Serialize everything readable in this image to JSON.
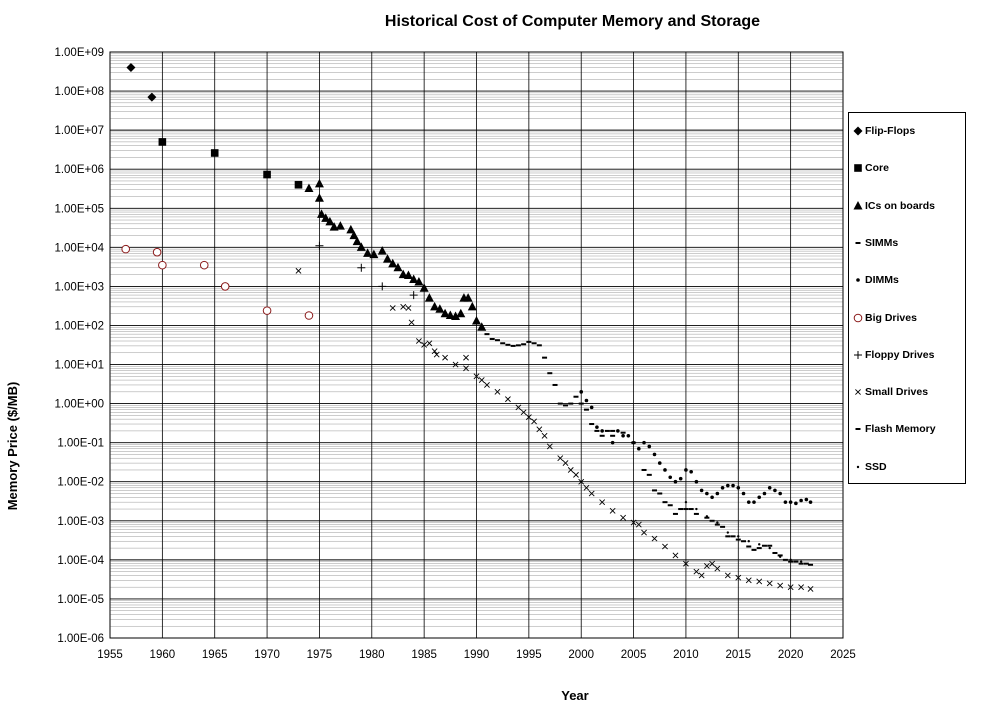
{
  "chart_data": {
    "type": "scatter",
    "title": "Historical Cost of Computer Memory and Storage",
    "xlabel": "Year",
    "ylabel": "Memory Price ($/MB)",
    "xlim": [
      1955,
      2025
    ],
    "ylim": [
      1e-06,
      1000000000.0
    ],
    "y_scale": "log",
    "grid": true,
    "legend_position": "right",
    "x_ticks": [
      "1955",
      "1960",
      "1965",
      "1970",
      "1975",
      "1980",
      "1985",
      "1990",
      "1995",
      "2000",
      "2005",
      "2010",
      "2015",
      "2020",
      "2025"
    ],
    "y_ticks": [
      "1.00E+09",
      "1.00E+08",
      "1.00E+07",
      "1.00E+06",
      "1.00E+05",
      "1.00E+04",
      "1.00E+03",
      "1.00E+02",
      "1.00E+01",
      "1.00E+00",
      "1.00E-01",
      "1.00E-02",
      "1.00E-03",
      "1.00E-04",
      "1.00E-05",
      "1.00E-06"
    ],
    "series": [
      {
        "name": "Flip-Flops",
        "marker": "diamond",
        "color": "#000000",
        "points": [
          [
            1957,
            400000000
          ],
          [
            1959,
            70000000
          ]
        ]
      },
      {
        "name": "Core",
        "marker": "square",
        "color": "#000000",
        "points": [
          [
            1960,
            5000000
          ],
          [
            1965,
            2600000
          ],
          [
            1970,
            730000
          ],
          [
            1973,
            400000
          ]
        ]
      },
      {
        "name": "ICs on boards",
        "marker": "triangle",
        "color": "#000000",
        "points": [
          [
            1974,
            320000
          ],
          [
            1975,
            420000
          ],
          [
            1975,
            180000
          ],
          [
            1975.2,
            70000
          ],
          [
            1975.6,
            55000
          ],
          [
            1976,
            45000
          ],
          [
            1976.4,
            33000
          ],
          [
            1977,
            35000
          ],
          [
            1978,
            28000
          ],
          [
            1978.3,
            20000
          ],
          [
            1978.6,
            14000
          ],
          [
            1979,
            10000
          ],
          [
            1979.6,
            7000
          ],
          [
            1980.2,
            6500
          ],
          [
            1981,
            8000
          ],
          [
            1981.5,
            5000
          ],
          [
            1982,
            3800
          ],
          [
            1982.5,
            3000
          ],
          [
            1983,
            2000
          ],
          [
            1983.5,
            1900
          ],
          [
            1984,
            1500
          ],
          [
            1984.5,
            1300
          ],
          [
            1985,
            900
          ],
          [
            1985.5,
            500
          ],
          [
            1986,
            300
          ],
          [
            1986.5,
            260
          ],
          [
            1987,
            200
          ],
          [
            1987.5,
            180
          ],
          [
            1988,
            170
          ],
          [
            1988.5,
            200
          ],
          [
            1988.8,
            500
          ],
          [
            1989.2,
            500
          ],
          [
            1989.6,
            300
          ],
          [
            1990,
            130
          ],
          [
            1990.5,
            90
          ]
        ]
      },
      {
        "name": "SIMMs",
        "marker": "dash",
        "color": "#000000",
        "points": [
          [
            1991,
            60
          ],
          [
            1991.5,
            45
          ],
          [
            1992,
            42
          ],
          [
            1992.5,
            35
          ],
          [
            1993,
            32
          ],
          [
            1993.5,
            30
          ],
          [
            1994,
            31
          ],
          [
            1994.5,
            33
          ],
          [
            1995,
            38
          ],
          [
            1995.5,
            35
          ],
          [
            1996,
            31
          ],
          [
            1996.5,
            15
          ],
          [
            1997,
            6
          ],
          [
            1997.5,
            3
          ],
          [
            1998,
            1
          ],
          [
            1998.5,
            0.9
          ],
          [
            1999,
            1
          ],
          [
            1999.5,
            1.5
          ],
          [
            2000,
            1
          ],
          [
            2000.5,
            0.7
          ],
          [
            2001,
            0.3
          ],
          [
            2001.5,
            0.2
          ],
          [
            2002,
            0.15
          ],
          [
            2002.5,
            0.2
          ],
          [
            2003,
            0.15
          ]
        ]
      },
      {
        "name": "DIMMs",
        "marker": "dot",
        "color": "#000000",
        "points": [
          [
            2000,
            2
          ],
          [
            2000.5,
            1.2
          ],
          [
            2001,
            0.8
          ],
          [
            2001.5,
            0.25
          ],
          [
            2002,
            0.2
          ],
          [
            2003,
            0.1
          ],
          [
            2003.5,
            0.2
          ],
          [
            2004,
            0.15
          ],
          [
            2004.5,
            0.15
          ],
          [
            2005,
            0.1
          ],
          [
            2005.5,
            0.07
          ],
          [
            2006,
            0.1
          ],
          [
            2006.5,
            0.08
          ],
          [
            2007,
            0.05
          ],
          [
            2007.5,
            0.03
          ],
          [
            2008,
            0.02
          ],
          [
            2008.5,
            0.013
          ],
          [
            2009,
            0.01
          ],
          [
            2009.5,
            0.012
          ],
          [
            2010,
            0.02
          ],
          [
            2010.5,
            0.018
          ],
          [
            2011,
            0.01
          ],
          [
            2011.5,
            0.006
          ],
          [
            2012,
            0.005
          ],
          [
            2012.5,
            0.004
          ],
          [
            2013,
            0.005
          ],
          [
            2013.5,
            0.007
          ],
          [
            2014,
            0.008
          ],
          [
            2014.5,
            0.008
          ],
          [
            2015,
            0.007
          ],
          [
            2015.5,
            0.005
          ],
          [
            2016,
            0.003
          ],
          [
            2016.5,
            0.003
          ],
          [
            2017,
            0.004
          ],
          [
            2017.5,
            0.005
          ],
          [
            2018,
            0.007
          ],
          [
            2018.5,
            0.006
          ],
          [
            2019,
            0.005
          ],
          [
            2019.5,
            0.003
          ],
          [
            2020,
            0.003
          ],
          [
            2020.5,
            0.0028
          ],
          [
            2021,
            0.0033
          ],
          [
            2021.5,
            0.0035
          ],
          [
            2021.9,
            0.003
          ]
        ]
      },
      {
        "name": "Big Drives",
        "marker": "circle",
        "color": "#8b1a1a",
        "points": [
          [
            1956.5,
            9000
          ],
          [
            1959.5,
            7500
          ],
          [
            1960,
            3500
          ],
          [
            1964,
            3500
          ],
          [
            1966,
            1000
          ],
          [
            1970,
            240
          ],
          [
            1974,
            180
          ]
        ]
      },
      {
        "name": "Floppy Drives",
        "marker": "plus",
        "color": "#000000",
        "points": [
          [
            1975,
            11000
          ],
          [
            1979,
            3000
          ],
          [
            1981,
            1000
          ],
          [
            1984,
            600
          ]
        ]
      },
      {
        "name": "Small Drives",
        "marker": "x",
        "color": "#000000",
        "points": [
          [
            1973,
            2500
          ],
          [
            1982,
            280
          ],
          [
            1983,
            300
          ],
          [
            1983.5,
            280
          ],
          [
            1983.8,
            120
          ],
          [
            1984.5,
            40
          ],
          [
            1985,
            32
          ],
          [
            1985.5,
            35
          ],
          [
            1986,
            22
          ],
          [
            1986.2,
            18
          ],
          [
            1987,
            15
          ],
          [
            1988,
            10
          ],
          [
            1989,
            15
          ],
          [
            1989,
            8
          ],
          [
            1990,
            5
          ],
          [
            1990.5,
            4
          ],
          [
            1991,
            3
          ],
          [
            1992,
            2
          ],
          [
            1993,
            1.3
          ],
          [
            1994,
            0.8
          ],
          [
            1994.5,
            0.6
          ],
          [
            1995,
            0.45
          ],
          [
            1995.5,
            0.35
          ],
          [
            1996,
            0.22
          ],
          [
            1996.5,
            0.15
          ],
          [
            1997,
            0.08
          ],
          [
            1998,
            0.04
          ],
          [
            1998.5,
            0.03
          ],
          [
            1999,
            0.02
          ],
          [
            1999.5,
            0.015
          ],
          [
            2000,
            0.01
          ],
          [
            2000.5,
            0.007
          ],
          [
            2001,
            0.005
          ],
          [
            2002,
            0.003
          ],
          [
            2003,
            0.0018
          ],
          [
            2004,
            0.0012
          ],
          [
            2005,
            0.0009
          ],
          [
            2005.5,
            0.0008
          ],
          [
            2006,
            0.0005
          ],
          [
            2007,
            0.00035
          ],
          [
            2008,
            0.00022
          ],
          [
            2009,
            0.00013
          ],
          [
            2010,
            8e-05
          ],
          [
            2011,
            5e-05
          ],
          [
            2011.5,
            4e-05
          ],
          [
            2012,
            7e-05
          ],
          [
            2012.5,
            8e-05
          ],
          [
            2013,
            6e-05
          ],
          [
            2014,
            4e-05
          ],
          [
            2015,
            3.5e-05
          ],
          [
            2016,
            3e-05
          ],
          [
            2017,
            2.8e-05
          ],
          [
            2018,
            2.5e-05
          ],
          [
            2019,
            2.2e-05
          ],
          [
            2020,
            2e-05
          ],
          [
            2021,
            2e-05
          ],
          [
            2021.9,
            1.8e-05
          ]
        ]
      },
      {
        "name": "Flash Memory",
        "marker": "dash",
        "color": "#000000",
        "points": [
          [
            2003,
            0.2
          ],
          [
            2004,
            0.18
          ],
          [
            2005,
            0.1
          ],
          [
            2006,
            0.02
          ],
          [
            2006.5,
            0.015
          ],
          [
            2007,
            0.006
          ],
          [
            2007.5,
            0.005
          ],
          [
            2008,
            0.003
          ],
          [
            2008.5,
            0.0025
          ],
          [
            2009,
            0.0015
          ],
          [
            2009.5,
            0.002
          ],
          [
            2010,
            0.002
          ],
          [
            2010.5,
            0.002
          ],
          [
            2011,
            0.0015
          ],
          [
            2012,
            0.0012
          ],
          [
            2012.5,
            0.001
          ],
          [
            2013,
            0.0008
          ],
          [
            2013.5,
            0.0007
          ],
          [
            2014,
            0.0004
          ],
          [
            2014.5,
            0.0004
          ],
          [
            2015,
            0.00033
          ],
          [
            2015.5,
            0.0003
          ],
          [
            2016,
            0.00022
          ],
          [
            2016.5,
            0.00018
          ],
          [
            2017,
            0.0002
          ],
          [
            2017.5,
            0.00023
          ],
          [
            2018,
            0.00023
          ],
          [
            2018.5,
            0.00015
          ],
          [
            2019,
            0.00013
          ],
          [
            2019.5,
            0.0001
          ],
          [
            2020,
            9e-05
          ],
          [
            2020.5,
            9e-05
          ],
          [
            2021,
            8e-05
          ],
          [
            2021.5,
            8e-05
          ],
          [
            2021.9,
            7.5e-05
          ]
        ]
      },
      {
        "name": "SSD",
        "marker": "dot-small",
        "color": "#000000",
        "points": [
          [
            2009,
            0.01
          ],
          [
            2010,
            0.003
          ],
          [
            2011,
            0.002
          ],
          [
            2012,
            0.0013
          ],
          [
            2013,
            0.0009
          ],
          [
            2014,
            0.0005
          ],
          [
            2015,
            0.0004
          ],
          [
            2016,
            0.0003
          ],
          [
            2017,
            0.00025
          ],
          [
            2018,
            0.0002
          ],
          [
            2019,
            0.00012
          ],
          [
            2020,
            0.0001
          ],
          [
            2021,
            9e-05
          ]
        ]
      }
    ]
  }
}
